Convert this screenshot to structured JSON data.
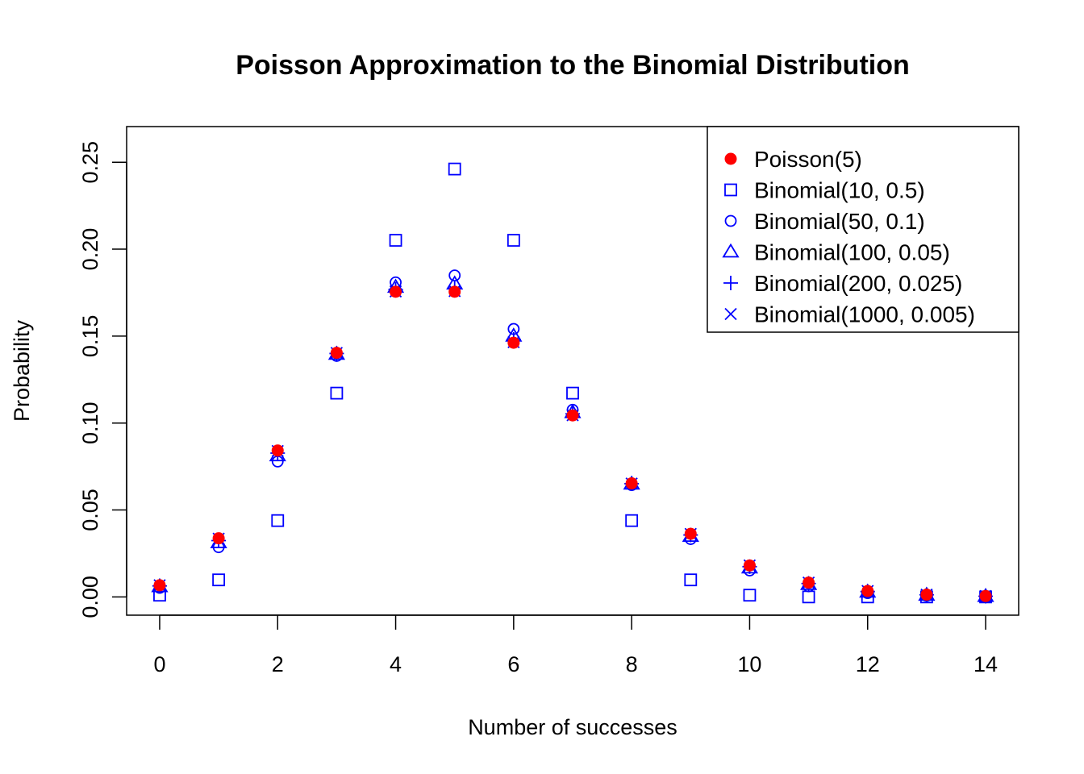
{
  "chart_data": {
    "type": "scatter",
    "title": "Poisson Approximation to the Binomial Distribution",
    "xlabel": "Number of successes",
    "ylabel": "Probability",
    "xlim": [
      -0.56,
      14.56
    ],
    "ylim": [
      -0.0105,
      0.2705
    ],
    "x_ticks": [
      0,
      2,
      4,
      6,
      8,
      10,
      12,
      14
    ],
    "x_tick_labels": [
      "0",
      "2",
      "4",
      "6",
      "8",
      "10",
      "12",
      "14"
    ],
    "y_ticks": [
      0.0,
      0.05,
      0.1,
      0.15,
      0.2,
      0.25
    ],
    "y_tick_labels": [
      "0.00",
      "0.05",
      "0.10",
      "0.15",
      "0.20",
      "0.25"
    ],
    "grid": false,
    "legend_position": "top-right",
    "x": [
      0,
      1,
      2,
      3,
      4,
      5,
      6,
      7,
      8,
      9,
      10,
      11,
      12,
      13,
      14
    ],
    "series": [
      {
        "name": "Poisson(5)",
        "marker": "filled-circle",
        "color": "#ff0000",
        "values": [
          0.0067,
          0.0337,
          0.0842,
          0.1404,
          0.1755,
          0.1755,
          0.1462,
          0.1044,
          0.0653,
          0.0363,
          0.0181,
          0.0082,
          0.0034,
          0.0013,
          0.0005
        ]
      },
      {
        "name": "Binomial(10, 0.5)",
        "marker": "square",
        "color": "#0000ff",
        "values": [
          0.001,
          0.0098,
          0.0439,
          0.1172,
          0.2051,
          0.2461,
          0.2051,
          0.1172,
          0.0439,
          0.0098,
          0.001,
          0.0,
          0.0,
          0.0,
          0.0
        ]
      },
      {
        "name": "Binomial(50, 0.1)",
        "marker": "circle",
        "color": "#0000ff",
        "values": [
          0.0052,
          0.0286,
          0.0779,
          0.1386,
          0.1809,
          0.1849,
          0.1541,
          0.1076,
          0.0643,
          0.0333,
          0.0152,
          0.0061,
          0.0022,
          0.0007,
          0.0002
        ]
      },
      {
        "name": "Binomial(100, 0.05)",
        "marker": "triangle",
        "color": "#0000ff",
        "values": [
          0.0059,
          0.0312,
          0.0812,
          0.1396,
          0.1781,
          0.18,
          0.15,
          0.106,
          0.0649,
          0.0349,
          0.0167,
          0.0072,
          0.0028,
          0.001,
          0.0003
        ]
      },
      {
        "name": "Binomial(200, 0.025)",
        "marker": "plus",
        "color": "#0000ff",
        "values": [
          0.0063,
          0.0324,
          0.0827,
          0.14,
          0.1768,
          0.1777,
          0.1481,
          0.1053,
          0.0651,
          0.0356,
          0.0174,
          0.0077,
          0.0031,
          0.0012,
          0.0004
        ]
      },
      {
        "name": "Binomial(1000, 0.005)",
        "marker": "cross",
        "color": "#0000ff",
        "values": [
          0.0067,
          0.0335,
          0.0839,
          0.1403,
          0.1757,
          0.1759,
          0.1465,
          0.1045,
          0.0652,
          0.0362,
          0.0181,
          0.0082,
          0.0034,
          0.0013,
          0.0005
        ]
      }
    ]
  }
}
